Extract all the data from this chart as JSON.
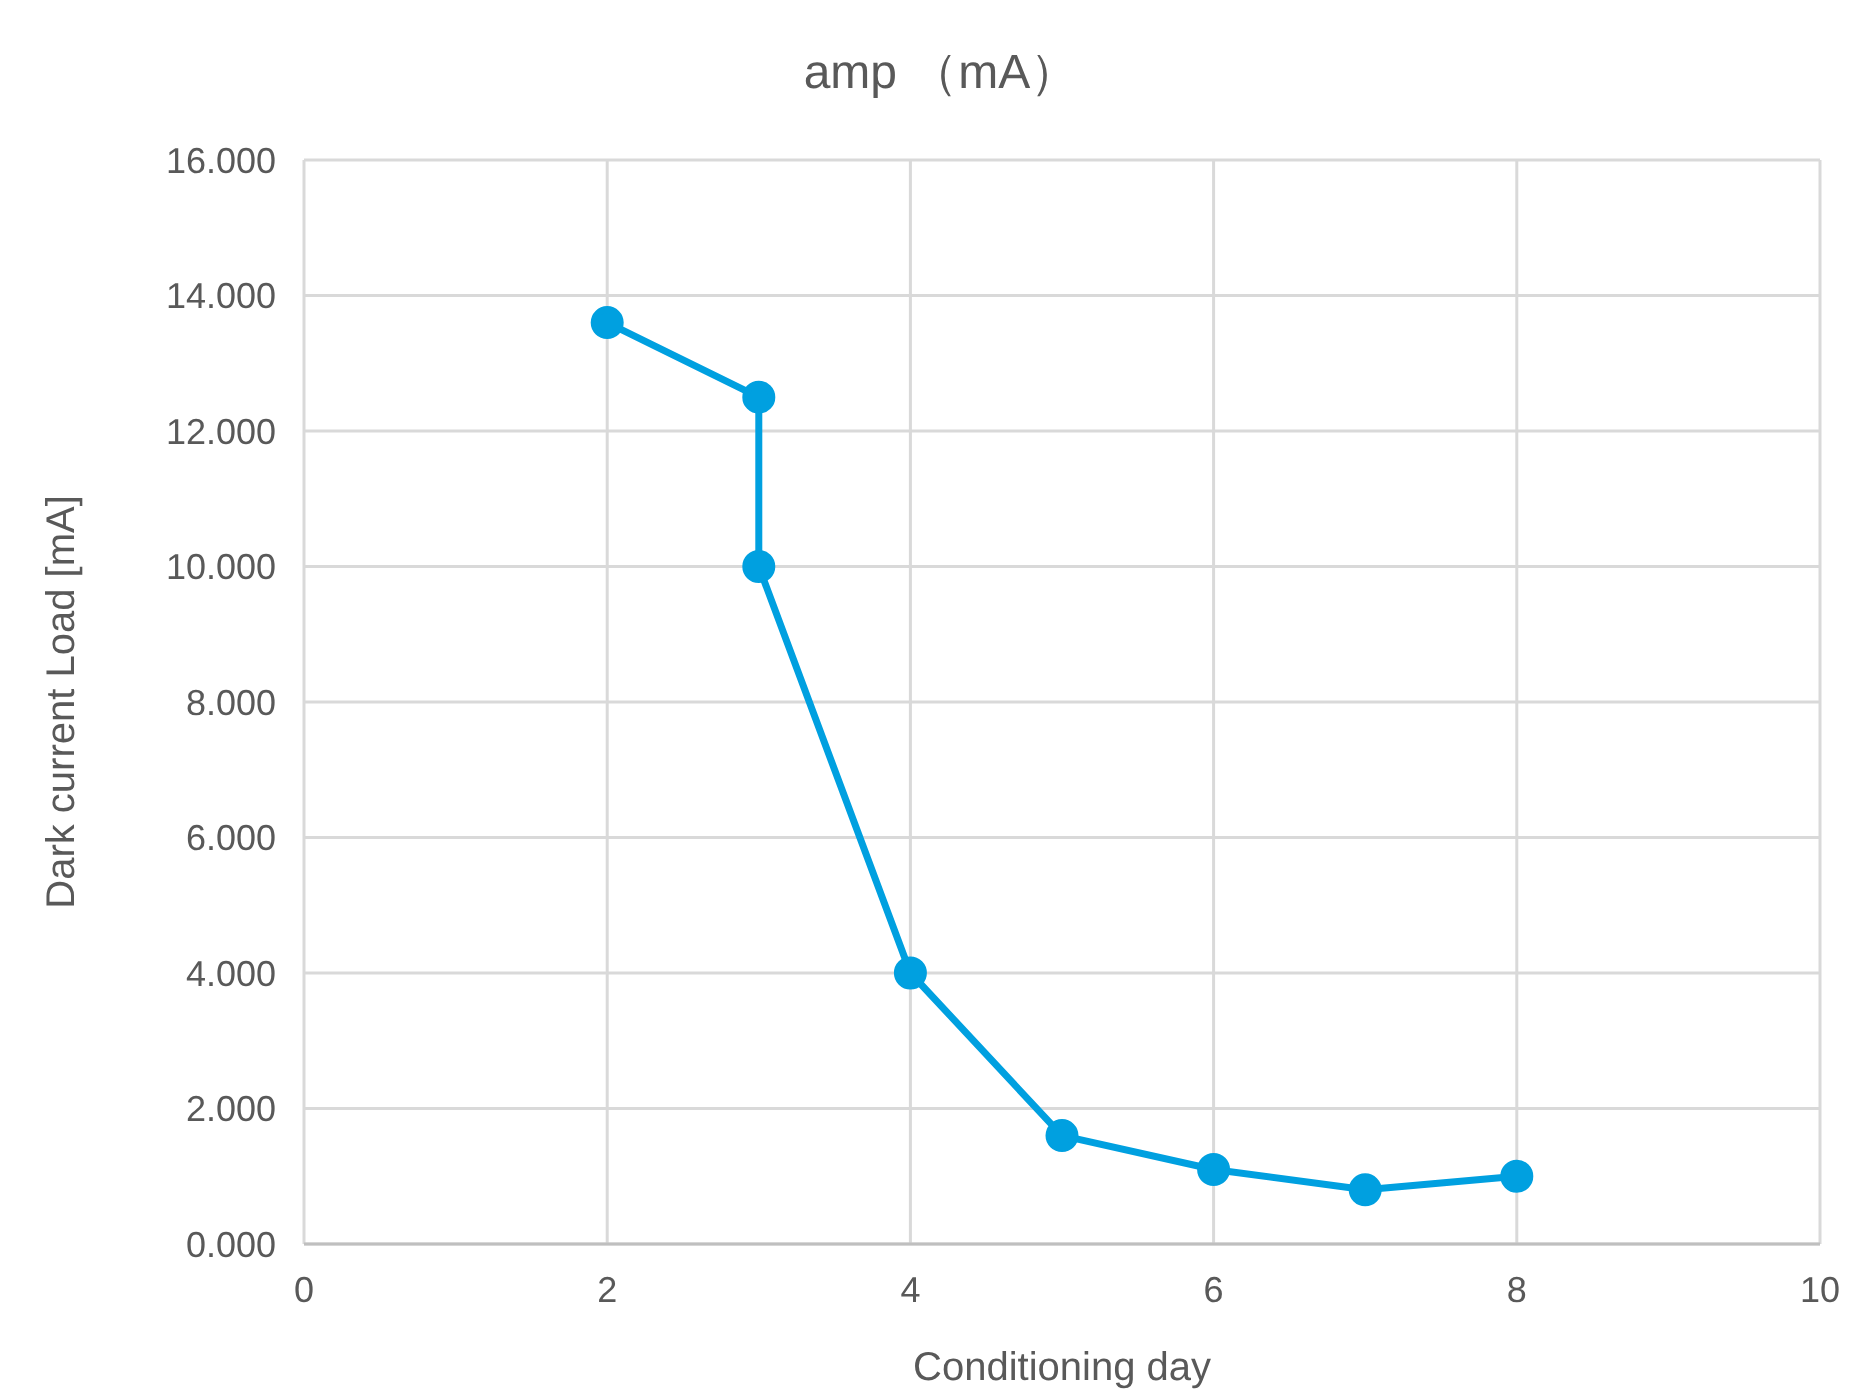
{
  "chart_data": {
    "type": "line",
    "title": "amp （mA）",
    "xlabel": "Conditioning day",
    "ylabel": "Dark current Load [mA]",
    "x": [
      2,
      3,
      3,
      4,
      5,
      6,
      7,
      8
    ],
    "series": [
      {
        "color": "#00a0e0",
        "values": [
          13.6,
          12.5,
          10.0,
          4.0,
          1.6,
          1.1,
          0.8,
          1.0
        ]
      }
    ],
    "xlim": [
      0,
      10
    ],
    "xticks": [
      0,
      2,
      4,
      6,
      8,
      10
    ],
    "ylim": [
      0,
      16
    ],
    "yticks": [
      {
        "value": 0,
        "label": "0.000"
      },
      {
        "value": 2,
        "label": "2.000"
      },
      {
        "value": 4,
        "label": "4.000"
      },
      {
        "value": 6,
        "label": "6.000"
      },
      {
        "value": 8,
        "label": "8.000"
      },
      {
        "value": 10,
        "label": "10.000"
      },
      {
        "value": 12,
        "label": "12.000"
      },
      {
        "value": 14,
        "label": "14.000"
      },
      {
        "value": 16,
        "label": "16.000"
      }
    ],
    "grid": true,
    "marker": "circle",
    "line_style": "solid",
    "legend": false
  }
}
